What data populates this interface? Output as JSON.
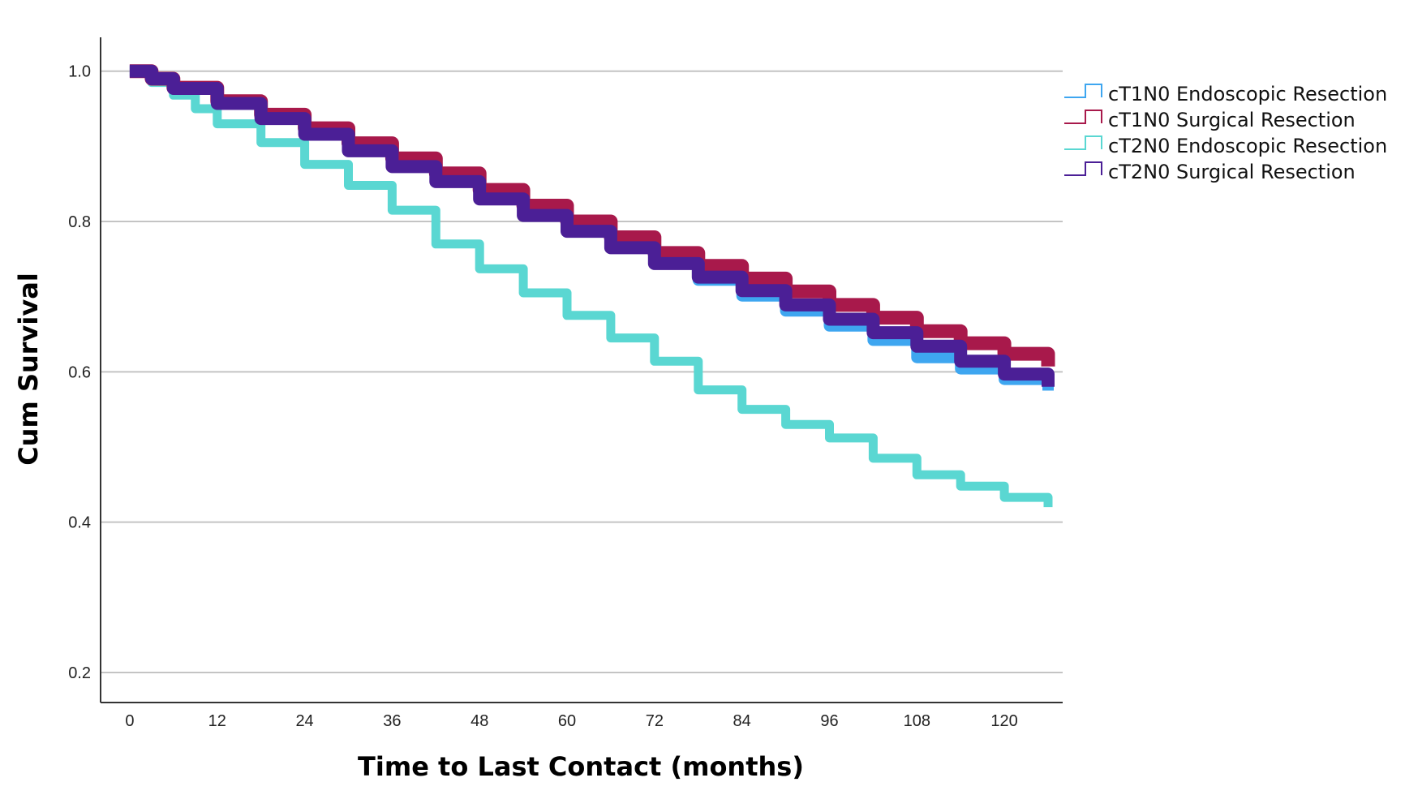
{
  "chart_data": {
    "type": "line",
    "title": "",
    "xlabel": "Time to Last Contact (months)",
    "ylabel": "Cum Survival",
    "xlim": [
      -4,
      128
    ],
    "ylim": [
      0.16,
      1.045
    ],
    "x_ticks": [
      0,
      12,
      24,
      36,
      48,
      60,
      72,
      84,
      96,
      108,
      120
    ],
    "y_ticks": [
      0.2,
      0.4,
      0.6,
      0.8,
      1.0
    ],
    "y_tick_labels": [
      "0.2",
      "0.4",
      "0.6",
      "0.8",
      "1.0"
    ],
    "grid": "horizontal",
    "legend_position": "top-right",
    "step": true,
    "series": [
      {
        "name": "cT1N0 Endoscopic Resection",
        "color": "#3ea6f0",
        "stroke": 14,
        "x": [
          0,
          3,
          6,
          12,
          18,
          24,
          30,
          36,
          42,
          48,
          54,
          60,
          66,
          72,
          78,
          84,
          90,
          96,
          102,
          108,
          114,
          120,
          126
        ],
        "y": [
          1.0,
          0.99,
          0.978,
          0.958,
          0.938,
          0.918,
          0.896,
          0.875,
          0.855,
          0.832,
          0.81,
          0.788,
          0.766,
          0.744,
          0.722,
          0.701,
          0.681,
          0.661,
          0.642,
          0.619,
          0.604,
          0.59,
          0.575
        ]
      },
      {
        "name": "cT1N0 Surgical Resection",
        "color": "#a8194b",
        "stroke": 17,
        "x": [
          0,
          3,
          6,
          12,
          18,
          24,
          30,
          36,
          42,
          48,
          54,
          60,
          66,
          72,
          78,
          84,
          90,
          96,
          102,
          108,
          114,
          120,
          126
        ],
        "y": [
          1.0,
          0.99,
          0.978,
          0.96,
          0.942,
          0.924,
          0.904,
          0.884,
          0.864,
          0.842,
          0.821,
          0.8,
          0.779,
          0.758,
          0.741,
          0.724,
          0.707,
          0.689,
          0.672,
          0.654,
          0.638,
          0.624,
          0.607
        ]
      },
      {
        "name": "cT2N0 Endoscopic Resection",
        "color": "#5ad7d2",
        "stroke": 11,
        "x": [
          0,
          3,
          6,
          9,
          12,
          18,
          24,
          30,
          36,
          42,
          48,
          54,
          60,
          66,
          72,
          78,
          84,
          90,
          96,
          102,
          108,
          114,
          120,
          126
        ],
        "y": [
          1.0,
          0.985,
          0.968,
          0.95,
          0.93,
          0.905,
          0.876,
          0.848,
          0.815,
          0.77,
          0.737,
          0.705,
          0.675,
          0.645,
          0.614,
          0.576,
          0.55,
          0.53,
          0.512,
          0.485,
          0.463,
          0.448,
          0.433,
          0.42
        ]
      },
      {
        "name": "cT2N0 Surgical Resection",
        "color": "#4b1f96",
        "stroke": 16,
        "x": [
          0,
          3,
          6,
          12,
          18,
          24,
          30,
          36,
          42,
          48,
          54,
          60,
          66,
          72,
          78,
          84,
          90,
          96,
          102,
          108,
          114,
          120,
          126
        ],
        "y": [
          1.0,
          0.99,
          0.977,
          0.957,
          0.937,
          0.916,
          0.894,
          0.873,
          0.853,
          0.83,
          0.808,
          0.787,
          0.765,
          0.744,
          0.726,
          0.708,
          0.689,
          0.67,
          0.652,
          0.634,
          0.614,
          0.597,
          0.58
        ]
      }
    ]
  }
}
